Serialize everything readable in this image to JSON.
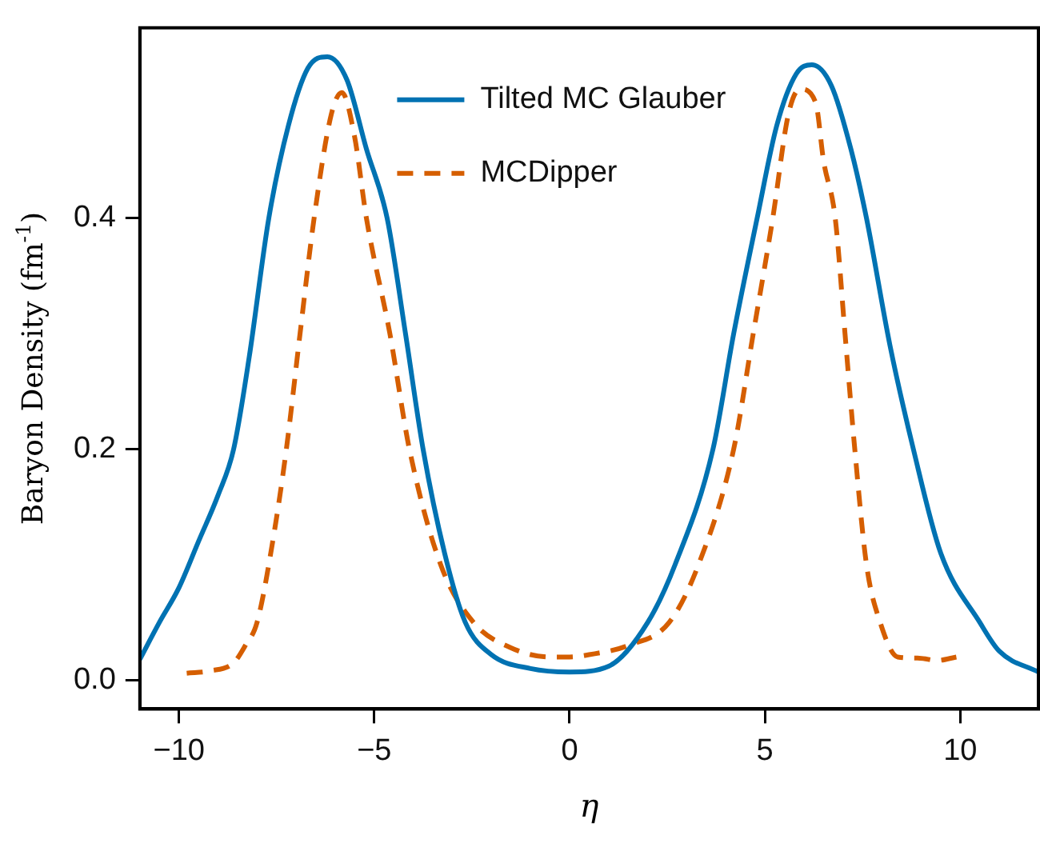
{
  "chart_data": {
    "type": "line",
    "xlabel": "η",
    "ylabel": "Baryon Density (fm$^{-1}$)",
    "xlim": [
      -11,
      12
    ],
    "ylim": [
      -0.025,
      0.565
    ],
    "xticks": [
      {
        "value": -10,
        "label": "−10"
      },
      {
        "value": -5,
        "label": "−5"
      },
      0,
      5,
      10
    ],
    "yticks": [
      {
        "value": 0,
        "label": "0.0"
      },
      {
        "value": 0.2,
        "label": "0.2"
      },
      {
        "value": 0.4,
        "label": "0.4"
      }
    ],
    "grid": false,
    "legend": "top",
    "marker": "none",
    "series": [
      {
        "name": "Tilted MC Glauber",
        "color": "#0072b2",
        "line_style": "solid",
        "x": [
          -11,
          -10.5,
          -10,
          -9.5,
          -9,
          -8.6,
          -8.2,
          -7.7,
          -7.2,
          -6.7,
          -6.2,
          -5.7,
          -5.2,
          -4.67,
          -4.2,
          -3.75,
          -3.2,
          -2.67,
          -2,
          -1,
          0,
          1,
          2,
          2.7,
          3.67,
          4.2,
          4.8,
          5.3,
          5.8,
          6.2,
          6.7,
          7.2,
          7.6,
          8.2,
          8.8,
          9.5,
          10.5,
          11,
          12
        ],
        "values": [
          0.018,
          0.05,
          0.08,
          0.12,
          0.16,
          0.2,
          0.28,
          0.4,
          0.48,
          0.53,
          0.54,
          0.52,
          0.46,
          0.4,
          0.3,
          0.2,
          0.11,
          0.05,
          0.022,
          0.01,
          0.007,
          0.012,
          0.05,
          0.1,
          0.2,
          0.3,
          0.4,
          0.48,
          0.525,
          0.533,
          0.515,
          0.46,
          0.4,
          0.29,
          0.2,
          0.11,
          0.05,
          0.025,
          0.007
        ]
      },
      {
        "name": "MCDipper",
        "color": "#d55e00",
        "line_style": "dashed",
        "x": [
          -9.8,
          -9.2,
          -8.6,
          -8.3,
          -8,
          -7.6,
          -7.25,
          -6.9,
          -6.54,
          -6.1,
          -5.83,
          -5.5,
          -5.2,
          -4.6,
          -4.1,
          -3.3,
          -2.46,
          -1.5,
          -0.5,
          0,
          0.5,
          1.5,
          2.55,
          3.3,
          4.2,
          4.7,
          5.2,
          5.6,
          5.9,
          6.3,
          6.5,
          6.8,
          7.05,
          7.3,
          7.6,
          7.95,
          8.4,
          8.96,
          9.4,
          9.9
        ],
        "values": [
          0.006,
          0.008,
          0.015,
          0.03,
          0.05,
          0.12,
          0.2,
          0.3,
          0.4,
          0.49,
          0.509,
          0.47,
          0.4,
          0.3,
          0.2,
          0.1,
          0.05,
          0.028,
          0.02,
          0.02,
          0.022,
          0.03,
          0.05,
          0.1,
          0.2,
          0.3,
          0.4,
          0.49,
          0.512,
          0.5,
          0.45,
          0.4,
          0.3,
          0.2,
          0.1,
          0.05,
          0.02,
          0.019,
          0.017,
          0.02
        ]
      }
    ]
  }
}
